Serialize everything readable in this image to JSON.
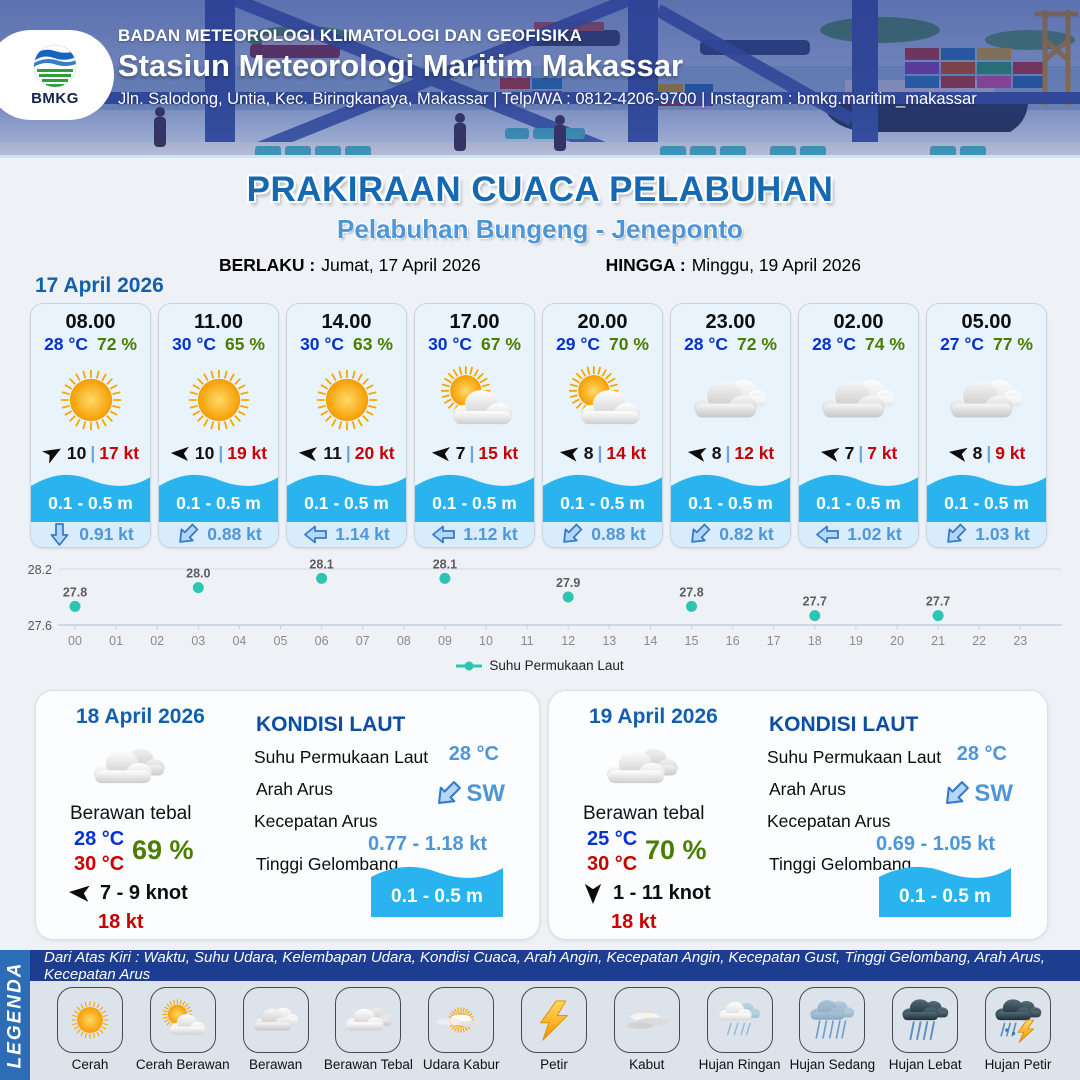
{
  "header": {
    "logo_text": "BMKG",
    "agency": "BADAN METEOROLOGI KLIMATOLOGI DAN GEOFISIKA",
    "station": "Stasiun Meteorologi Maritim Makassar",
    "contact": "Jln. Salodong, Untia, Kec. Biringkanaya, Makassar | Telp/WA : 0812-4206-9700 | Instagram : bmkg.maritim_makassar"
  },
  "title": {
    "main": "PRAKIRAAN CUACA PELABUHAN",
    "port": "Pelabuhan Bungeng - Jeneponto",
    "valid_from_label": "BERLAKU :",
    "valid_from": "Jumat, 17 April 2026",
    "valid_to_label": "HINGGA :",
    "valid_to": "Minggu, 19 April 2026"
  },
  "forecast": {
    "date": "17 April 2026",
    "sep": "|",
    "cards": [
      {
        "time": "08.00",
        "temp": "28 °C",
        "humidity": "72 %",
        "icon": "cerah",
        "wind_dir_deg": -30,
        "wind_avg": "10",
        "wind_gust": "17 kt",
        "wave": "0.1 - 0.5 m",
        "current": "0.91 kt",
        "current_dir_deg": 90
      },
      {
        "time": "11.00",
        "temp": "30 °C",
        "humidity": "65 %",
        "icon": "cerah",
        "wind_dir_deg": 183,
        "wind_avg": "10",
        "wind_gust": "19 kt",
        "wave": "0.1 - 0.5 m",
        "current": "0.88 kt",
        "current_dir_deg": 135
      },
      {
        "time": "14.00",
        "temp": "30 °C",
        "humidity": "63 %",
        "icon": "cerah",
        "wind_dir_deg": 185,
        "wind_avg": "11",
        "wind_gust": "20 kt",
        "wave": "0.1 - 0.5 m",
        "current": "1.14 kt",
        "current_dir_deg": 180
      },
      {
        "time": "17.00",
        "temp": "30 °C",
        "humidity": "67 %",
        "icon": "cerah-berawan",
        "wind_dir_deg": 185,
        "wind_avg": "7",
        "wind_gust": "15 kt",
        "wave": "0.1 - 0.5 m",
        "current": "1.12 kt",
        "current_dir_deg": 180
      },
      {
        "time": "20.00",
        "temp": "29 °C",
        "humidity": "70 %",
        "icon": "cerah-berawan",
        "wind_dir_deg": 188,
        "wind_avg": "8",
        "wind_gust": "14 kt",
        "wave": "0.1 - 0.5 m",
        "current": "0.88 kt",
        "current_dir_deg": 135
      },
      {
        "time": "23.00",
        "temp": "28 °C",
        "humidity": "72 %",
        "icon": "berawan",
        "wind_dir_deg": 190,
        "wind_avg": "8",
        "wind_gust": "12 kt",
        "wave": "0.1 - 0.5 m",
        "current": "0.82 kt",
        "current_dir_deg": 135
      },
      {
        "time": "02.00",
        "temp": "28 °C",
        "humidity": "74 %",
        "icon": "berawan",
        "wind_dir_deg": 190,
        "wind_avg": "7",
        "wind_gust": "7 kt",
        "wave": "0.1 - 0.5 m",
        "current": "1.02 kt",
        "current_dir_deg": 180
      },
      {
        "time": "05.00",
        "temp": "27 °C",
        "humidity": "77 %",
        "icon": "berawan",
        "wind_dir_deg": 190,
        "wind_avg": "8",
        "wind_gust": "9 kt",
        "wave": "0.1 - 0.5 m",
        "current": "1.03 kt",
        "current_dir_deg": 135
      }
    ]
  },
  "chart_data": {
    "type": "scatter",
    "legend": "Suhu Permukaan Laut",
    "x_ticks": [
      "00",
      "01",
      "02",
      "03",
      "04",
      "05",
      "06",
      "07",
      "08",
      "09",
      "10",
      "11",
      "12",
      "13",
      "14",
      "15",
      "16",
      "17",
      "18",
      "19",
      "20",
      "21",
      "22",
      "23"
    ],
    "x": [
      0,
      3,
      6,
      9,
      12,
      15,
      18,
      21
    ],
    "values": [
      27.8,
      28.0,
      28.1,
      28.1,
      27.9,
      27.8,
      27.7,
      27.7
    ],
    "ylabel": "",
    "xlabel": "",
    "ylim": [
      27.6,
      28.2
    ],
    "y_ticks": [
      "27.6",
      "28.2"
    ],
    "grid": true,
    "point_color": "#2cc5b2"
  },
  "days": [
    {
      "date": "18 April 2026",
      "icon": "berawan-tebal",
      "desc": "Berawan tebal",
      "temp_min": "28 °C",
      "temp_max": "30 °C",
      "humidity": "69 %",
      "wind_dir_deg": 185,
      "wind_range": "7  - 9 knot",
      "gust": "18 kt",
      "sea": {
        "title": "KONDISI LAUT",
        "sst_label": "Suhu Permukaan Laut",
        "sst": "28 °C",
        "current_dir_label": "Arah Arus",
        "current_dir": "SW",
        "current_dir_deg": 135,
        "current_speed_label": "Kecepatan Arus",
        "current_speed": "0.77  - 1.18 kt",
        "wave_label": "Tinggi Gelombang",
        "wave": "0.1 - 0.5 m"
      }
    },
    {
      "date": "19 April 2026",
      "icon": "berawan-tebal",
      "desc": "Berawan tebal",
      "temp_min": "25 °C",
      "temp_max": "30 °C",
      "humidity": "70 %",
      "wind_dir_deg": 90,
      "wind_range": "1  - 11 knot",
      "gust": "18 kt",
      "sea": {
        "title": "KONDISI LAUT",
        "sst_label": "Suhu Permukaan Laut",
        "sst": "28 °C",
        "current_dir_label": "Arah Arus",
        "current_dir": "SW",
        "current_dir_deg": 135,
        "current_speed_label": "Kecepatan Arus",
        "current_speed": "0.69  - 1.05 kt",
        "wave_label": "Tinggi Gelombang",
        "wave": "0.1 - 0.5 m"
      }
    }
  ],
  "legend": {
    "bar": "LEGENDA",
    "caption": "Dari Atas Kiri : Waktu, Suhu Udara, Kelembapan Udara, Kondisi Cuaca, Arah Angin, Kecepatan Angin, Kecepatan Gust, Tinggi Gelombang, Arah Arus, Kecepatan Arus",
    "items": [
      {
        "icon": "cerah",
        "label": "Cerah"
      },
      {
        "icon": "cerah-berawan",
        "label": "Cerah Berawan"
      },
      {
        "icon": "berawan",
        "label": "Berawan"
      },
      {
        "icon": "berawan-tebal",
        "label": "Berawan Tebal"
      },
      {
        "icon": "udara-kabur",
        "label": "Udara Kabur"
      },
      {
        "icon": "petir",
        "label": "Petir"
      },
      {
        "icon": "kabut",
        "label": "Kabut"
      },
      {
        "icon": "hujan-ringan",
        "label": "Hujan Ringan"
      },
      {
        "icon": "hujan-sedang",
        "label": "Hujan Sedang"
      },
      {
        "icon": "hujan-lebat",
        "label": "Hujan Lebat"
      },
      {
        "icon": "hujan-petir",
        "label": "Hujan Petir"
      }
    ]
  },
  "colors": {
    "title_blue": "#1568b2",
    "port_blue": "#4d96d8",
    "date_blue": "#1160ae",
    "temp_blue": "#0633cc",
    "humidity_green": "#4b7d00",
    "gust_red": "#c80000",
    "wave_cyan": "#29b3ef",
    "value_blue": "#4d96d8",
    "chart_teal": "#2cc5b2",
    "legend_strip": "#1d3e90",
    "legend_bar": "#2d6db8"
  }
}
